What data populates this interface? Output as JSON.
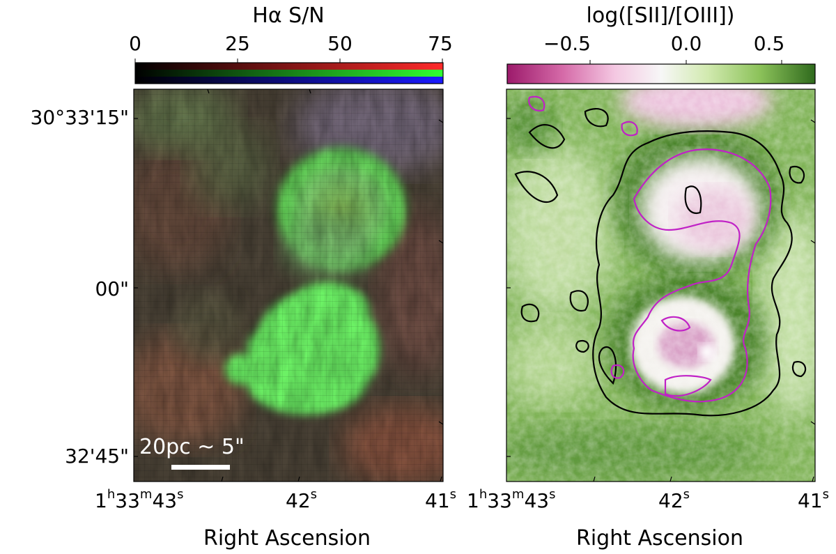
{
  "left_panel": {
    "colorbar": {
      "title": "Hα S/N",
      "ticks": [
        "0",
        "25",
        "50",
        "75"
      ],
      "range": [
        0,
        75
      ],
      "channels": [
        "red",
        "green",
        "blue"
      ]
    },
    "dec_labels": [
      "30°33'15\"",
      "00\"",
      "32'45\""
    ],
    "ra_labels": {
      "first": {
        "h": "1",
        "h_unit": "h",
        "m": "33",
        "m_unit": "m",
        "s": "43",
        "s_unit": "s"
      },
      "mid": {
        "value": "42",
        "unit": "s"
      },
      "last": {
        "value": "41",
        "unit": "s"
      }
    },
    "xlabel": "Right Ascension",
    "scalebar": {
      "text": "20pc ~ 5\""
    }
  },
  "right_panel": {
    "colorbar": {
      "title": "log([SII]/[OIII])",
      "ticks": [
        "−0.5",
        "0.0",
        "0.5"
      ],
      "range": [
        -0.85,
        0.85
      ],
      "cmap": "PiYG"
    },
    "ra_labels": {
      "first": {
        "h": "1",
        "h_unit": "h",
        "m": "33",
        "m_unit": "m",
        "s": "43",
        "s_unit": "s"
      },
      "mid": {
        "value": "42",
        "unit": "s"
      },
      "last": {
        "value": "41",
        "unit": "s"
      }
    },
    "xlabel": "Right Ascension",
    "contour_colors": [
      "#000000",
      "#c021c6"
    ]
  }
}
